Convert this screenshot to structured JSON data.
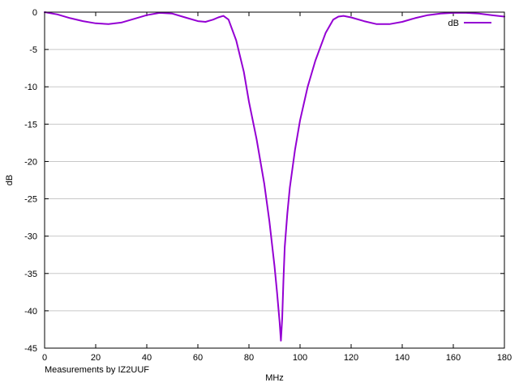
{
  "chart_data": {
    "type": "line",
    "title": "",
    "xlabel": "MHz",
    "ylabel": "dB",
    "xlim": [
      0,
      180
    ],
    "ylim": [
      -45,
      0
    ],
    "x_ticks": [
      0,
      20,
      40,
      60,
      80,
      100,
      120,
      140,
      160,
      180
    ],
    "y_ticks": [
      0,
      -5,
      -10,
      -15,
      -20,
      -25,
      -30,
      -35,
      -40,
      -45
    ],
    "grid": "horizontal",
    "legend_position": "top-right",
    "annotation": "Measurements by IZ2UUF",
    "series": [
      {
        "name": "dB",
        "color": "#9400d3",
        "x": [
          0,
          5,
          10,
          15,
          20,
          25,
          30,
          35,
          40,
          45,
          50,
          55,
          60,
          63,
          66,
          68,
          70,
          72,
          75,
          78,
          80,
          83,
          86,
          88,
          90,
          91,
          92,
          92.5,
          93,
          93.5,
          94,
          95,
          96,
          98,
          100,
          103,
          106,
          110,
          113,
          115,
          117,
          120,
          125,
          130,
          135,
          140,
          145,
          150,
          155,
          160,
          165,
          170,
          175,
          180
        ],
        "y": [
          0,
          -0.3,
          -0.8,
          -1.2,
          -1.5,
          -1.6,
          -1.4,
          -0.9,
          -0.4,
          -0.1,
          -0.2,
          -0.7,
          -1.2,
          -1.3,
          -1.0,
          -0.7,
          -0.5,
          -1.0,
          -3.8,
          -8.0,
          -12.0,
          -17.0,
          -23.0,
          -28.0,
          -34.0,
          -37.5,
          -41.5,
          -44.0,
          -41.0,
          -36.0,
          -31.5,
          -27.0,
          -23.5,
          -18.5,
          -14.5,
          -10.0,
          -6.5,
          -2.8,
          -1.0,
          -0.6,
          -0.5,
          -0.7,
          -1.2,
          -1.6,
          -1.6,
          -1.3,
          -0.8,
          -0.4,
          -0.2,
          -0.1,
          -0.1,
          -0.2,
          -0.4,
          -0.6
        ]
      }
    ]
  }
}
